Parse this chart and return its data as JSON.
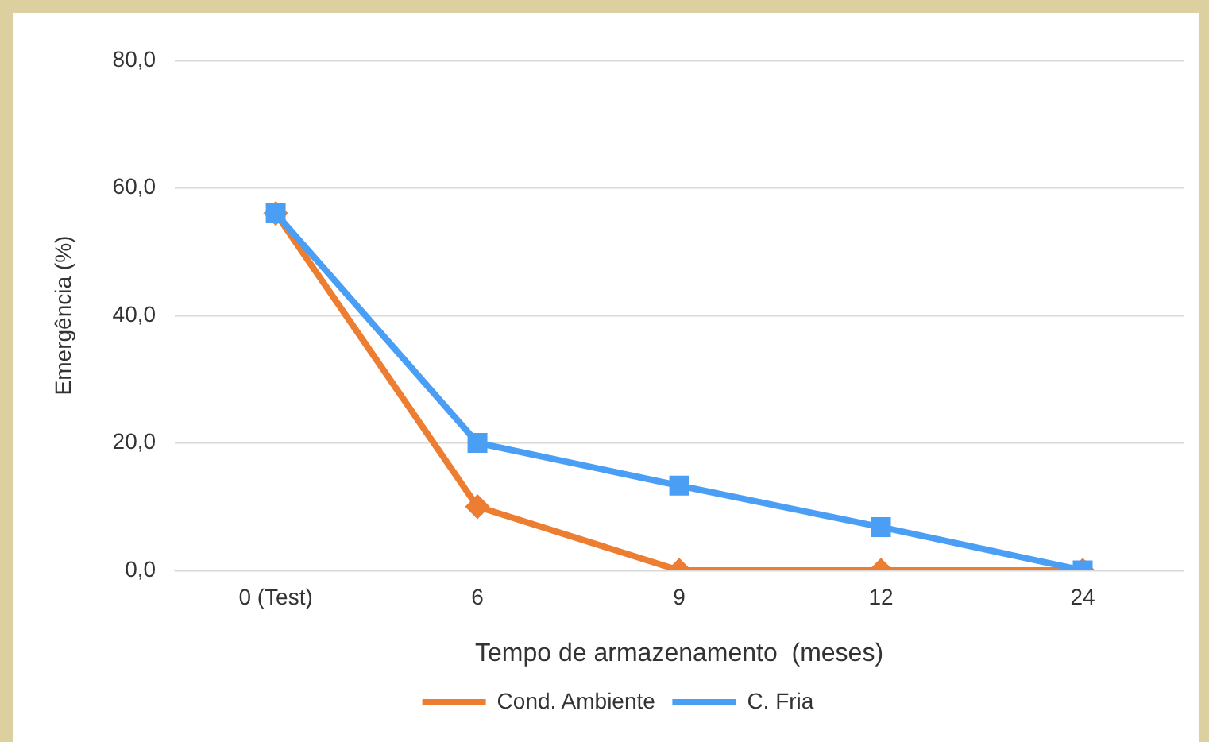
{
  "chart_data": {
    "type": "line",
    "xlabel": "Tempo de armazenamento  (meses)",
    "ylabel": "Emergência (%)",
    "categories": [
      "0 (Test)",
      "6",
      "9",
      "12",
      "24"
    ],
    "series": [
      {
        "name": "Cond. Ambiente",
        "color": "#ed7d31",
        "marker": "diamond",
        "values": [
          56,
          10,
          0,
          0,
          0
        ]
      },
      {
        "name": "C. Fria",
        "color": "#4a9ff5",
        "marker": "square",
        "values": [
          56,
          20,
          13.3,
          6.8,
          0
        ]
      }
    ],
    "ylim": [
      0,
      80
    ],
    "yticks": [
      {
        "value": 0,
        "label": "0,0"
      },
      {
        "value": 20,
        "label": "20,0"
      },
      {
        "value": 40,
        "label": "40,0"
      },
      {
        "value": 60,
        "label": "60,0"
      },
      {
        "value": 80,
        "label": "80,0"
      }
    ],
    "grid": "y",
    "legend": "bottom"
  }
}
